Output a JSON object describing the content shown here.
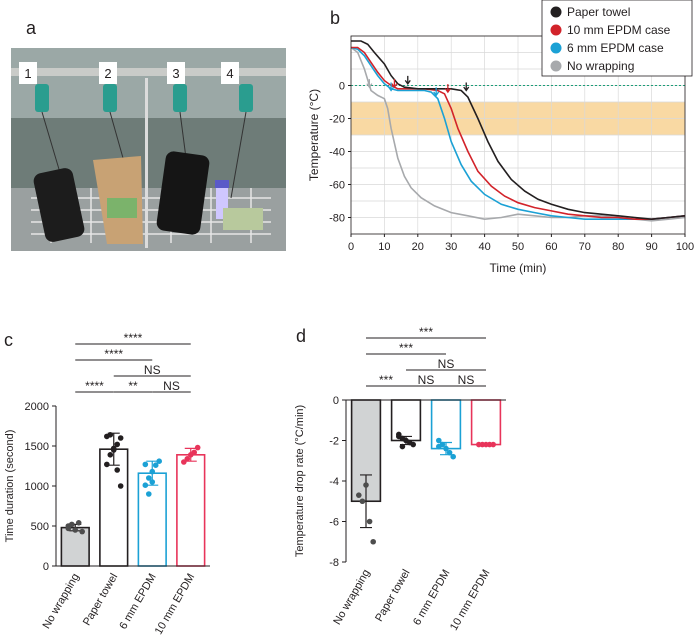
{
  "panels": {
    "a": "a",
    "b": "b",
    "c": "c",
    "d": "d"
  },
  "photo": {
    "tube_labels": [
      "1",
      "2",
      "3",
      "4"
    ]
  },
  "chart_data": [
    {
      "id": "b",
      "type": "line",
      "xlabel": "Time (min)",
      "ylabel": "Temperature (°C)",
      "xlim": [
        0,
        100
      ],
      "ylim": [
        -90,
        30
      ],
      "xticks": [
        0,
        10,
        20,
        30,
        40,
        50,
        60,
        70,
        80,
        90,
        100
      ],
      "yticks": [
        0,
        -20,
        -40,
        -60,
        -80
      ],
      "band": {
        "from": -10,
        "to": -30,
        "color": "#f9d9a3"
      },
      "zero_line_color": "#1a9e78",
      "legend_position": "top-right",
      "series": [
        {
          "name": "Paper towel",
          "color": "#231f20",
          "points": [
            [
              0,
              27
            ],
            [
              3,
              27
            ],
            [
              5,
              25
            ],
            [
              7,
              20
            ],
            [
              10,
              13
            ],
            [
              12,
              6
            ],
            [
              14,
              1
            ],
            [
              16,
              -1
            ],
            [
              20,
              -2
            ],
            [
              25,
              -2
            ],
            [
              30,
              -2
            ],
            [
              33,
              -3
            ],
            [
              35,
              -7
            ],
            [
              38,
              -20
            ],
            [
              41,
              -34
            ],
            [
              44,
              -46
            ],
            [
              48,
              -57
            ],
            [
              52,
              -64
            ],
            [
              56,
              -69
            ],
            [
              60,
              -72
            ],
            [
              65,
              -75
            ],
            [
              70,
              -77
            ],
            [
              75,
              -78
            ],
            [
              80,
              -79
            ],
            [
              85,
              -80
            ],
            [
              90,
              -81
            ],
            [
              95,
              -80
            ],
            [
              100,
              -79
            ]
          ]
        },
        {
          "name": "10 mm EPDM case",
          "color": "#d2232a",
          "points": [
            [
              0,
              23
            ],
            [
              2,
              23
            ],
            [
              4,
              20
            ],
            [
              6,
              14
            ],
            [
              8,
              8
            ],
            [
              10,
              3
            ],
            [
              12,
              0
            ],
            [
              14,
              -2
            ],
            [
              18,
              -2
            ],
            [
              22,
              -2
            ],
            [
              26,
              -3
            ],
            [
              28,
              -5
            ],
            [
              30,
              -14
            ],
            [
              32,
              -26
            ],
            [
              35,
              -40
            ],
            [
              38,
              -52
            ],
            [
              42,
              -61
            ],
            [
              46,
              -67
            ],
            [
              50,
              -71
            ],
            [
              55,
              -74
            ],
            [
              60,
              -76
            ],
            [
              65,
              -78
            ],
            [
              70,
              -79
            ],
            [
              75,
              -80
            ],
            [
              80,
              -80
            ],
            [
              85,
              -81
            ],
            [
              90,
              -81
            ],
            [
              95,
              -80
            ],
            [
              100,
              -79
            ]
          ]
        },
        {
          "name": "6 mm EPDM case",
          "color": "#1ba1d5",
          "points": [
            [
              0,
              23
            ],
            [
              2,
              22
            ],
            [
              4,
              18
            ],
            [
              6,
              12
            ],
            [
              8,
              6
            ],
            [
              10,
              1
            ],
            [
              12,
              -2
            ],
            [
              14,
              -3
            ],
            [
              18,
              -3
            ],
            [
              22,
              -3
            ],
            [
              24,
              -4
            ],
            [
              26,
              -8
            ],
            [
              28,
              -20
            ],
            [
              30,
              -34
            ],
            [
              33,
              -48
            ],
            [
              36,
              -58
            ],
            [
              40,
              -66
            ],
            [
              45,
              -72
            ],
            [
              50,
              -75
            ],
            [
              55,
              -77
            ],
            [
              60,
              -79
            ],
            [
              65,
              -80
            ],
            [
              70,
              -81
            ],
            [
              75,
              -81
            ],
            [
              80,
              -81
            ],
            [
              85,
              -81
            ],
            [
              90,
              -81
            ],
            [
              95,
              -80
            ],
            [
              100,
              -79
            ]
          ]
        },
        {
          "name": "No wrapping",
          "color": "#a7a9ac",
          "points": [
            [
              0,
              23
            ],
            [
              2,
              20
            ],
            [
              4,
              10
            ],
            [
              6,
              -3
            ],
            [
              8,
              -6
            ],
            [
              10,
              -8
            ],
            [
              11,
              -14
            ],
            [
              12,
              -26
            ],
            [
              14,
              -44
            ],
            [
              16,
              -55
            ],
            [
              18,
              -62
            ],
            [
              21,
              -68
            ],
            [
              25,
              -73
            ],
            [
              30,
              -77
            ],
            [
              35,
              -79
            ],
            [
              40,
              -81
            ],
            [
              45,
              -80
            ],
            [
              50,
              -78
            ],
            [
              55,
              -79
            ],
            [
              60,
              -80
            ],
            [
              65,
              -80
            ],
            [
              70,
              -79
            ],
            [
              75,
              -79
            ],
            [
              80,
              -80
            ],
            [
              85,
              -81
            ],
            [
              90,
              -82
            ],
            [
              95,
              -81
            ],
            [
              100,
              -80
            ]
          ]
        }
      ],
      "markers": [
        {
          "series": "No wrapping",
          "x": 5.5,
          "y": -1
        },
        {
          "series": "6 mm EPDM case",
          "x": 12,
          "y": -3
        },
        {
          "series": "10 mm EPDM case",
          "x": 13,
          "y": -1
        },
        {
          "series": "Paper towel",
          "x": 17,
          "y": 1
        },
        {
          "series": "6 mm EPDM case",
          "x": 25.5,
          "y": -6
        },
        {
          "series": "10 mm EPDM case",
          "x": 29,
          "y": -4
        },
        {
          "series": "Paper towel",
          "x": 34.5,
          "y": -3
        }
      ]
    },
    {
      "id": "c",
      "type": "bar",
      "ylabel": "Time duration (second)",
      "ylim": [
        0,
        2000
      ],
      "yticks": [
        0,
        500,
        1000,
        1500,
        2000
      ],
      "categories": [
        "No wrapping",
        "Paper towel",
        "6 mm EPDM",
        "10 mm EPDM"
      ],
      "values": [
        480,
        1460,
        1160,
        1390
      ],
      "errors": [
        40,
        200,
        150,
        80
      ],
      "bar_fill": [
        "#d1d3d4",
        "#ffffff",
        "#ffffff",
        "#ffffff"
      ],
      "bar_edge": [
        "#231f20",
        "#231f20",
        "#1ba1d5",
        "#e8345a"
      ],
      "points": [
        [
          470,
          520,
          450,
          540,
          430,
          500
        ],
        [
          1270,
          1390,
          1470,
          1520,
          1600,
          1620,
          1640,
          1450,
          1200,
          1000
        ],
        [
          1010,
          1100,
          1180,
          1260,
          1310,
          1270,
          900,
          1050
        ],
        [
          1300,
          1340,
          1390,
          1420,
          1480
        ]
      ],
      "significance": [
        {
          "from": 0,
          "to": 1,
          "label": "****",
          "level": 0
        },
        {
          "from": 1,
          "to": 2,
          "label": "**",
          "level": 0
        },
        {
          "from": 2,
          "to": 3,
          "label": "NS",
          "level": 0
        },
        {
          "from": 1,
          "to": 3,
          "label": "NS",
          "level": 1
        },
        {
          "from": 0,
          "to": 2,
          "label": "****",
          "level": 2
        },
        {
          "from": 0,
          "to": 3,
          "label": "****",
          "level": 3
        }
      ]
    },
    {
      "id": "d",
      "type": "bar",
      "ylabel": "Temperature drop rate (°C/min)",
      "ylim": [
        -8,
        0
      ],
      "yticks": [
        0,
        -2,
        -4,
        -6,
        -8
      ],
      "categories": [
        "No wrapping",
        "Paper towel",
        "6 mm EPDM",
        "10 mm EPDM"
      ],
      "values": [
        -5.0,
        -2.0,
        -2.4,
        -2.2
      ],
      "errors": [
        1.3,
        0.2,
        0.3,
        0.05
      ],
      "bar_fill": [
        "#d1d3d4",
        "#ffffff",
        "#ffffff",
        "#ffffff"
      ],
      "bar_edge": [
        "#231f20",
        "#231f20",
        "#1ba1d5",
        "#e8345a"
      ],
      "points": [
        [
          -4.7,
          -5.0,
          -4.2,
          -6.0,
          -7.0
        ],
        [
          -1.7,
          -1.9,
          -2.0,
          -2.1,
          -2.2,
          -1.8,
          -2.3
        ],
        [
          -2.0,
          -2.2,
          -2.4,
          -2.6,
          -2.8,
          -2.3
        ],
        [
          -2.2,
          -2.2,
          -2.2,
          -2.2,
          -2.2
        ]
      ],
      "significance": [
        {
          "from": 0,
          "to": 1,
          "label": "***",
          "level": 0
        },
        {
          "from": 1,
          "to": 2,
          "label": "NS",
          "level": 0
        },
        {
          "from": 2,
          "to": 3,
          "label": "NS",
          "level": 0
        },
        {
          "from": 1,
          "to": 3,
          "label": "NS",
          "level": 1
        },
        {
          "from": 0,
          "to": 2,
          "label": "***",
          "level": 2
        },
        {
          "from": 0,
          "to": 3,
          "label": "***",
          "level": 3
        }
      ]
    }
  ]
}
